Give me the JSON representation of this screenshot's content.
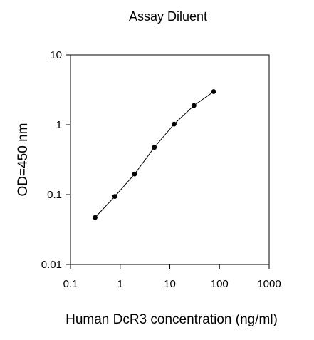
{
  "chart_data": {
    "type": "line",
    "title": "Assay Diluent",
    "xlabel": "Human DcR3 concentration (ng/ml)",
    "ylabel": "OD=450 nm",
    "x_scale": "log",
    "y_scale": "log",
    "xlim": [
      0.1,
      1000
    ],
    "ylim": [
      0.01,
      10
    ],
    "x_ticks": [
      0.1,
      1,
      10,
      100,
      1000
    ],
    "x_tick_labels": [
      "0.1",
      "1",
      "10",
      "100",
      "1000"
    ],
    "y_ticks": [
      0.01,
      0.1,
      1,
      10
    ],
    "y_tick_labels": [
      "0.01",
      "0.1",
      "1",
      "10"
    ],
    "grid": false,
    "series": [
      {
        "x": [
          0.3125,
          0.78125,
          1.953125,
          4.8828125,
          12.20703125,
          30.517578125,
          76.2939453125
        ],
        "y": [
          0.047,
          0.094,
          0.197,
          0.475,
          1.02,
          1.88,
          2.98
        ]
      }
    ]
  }
}
